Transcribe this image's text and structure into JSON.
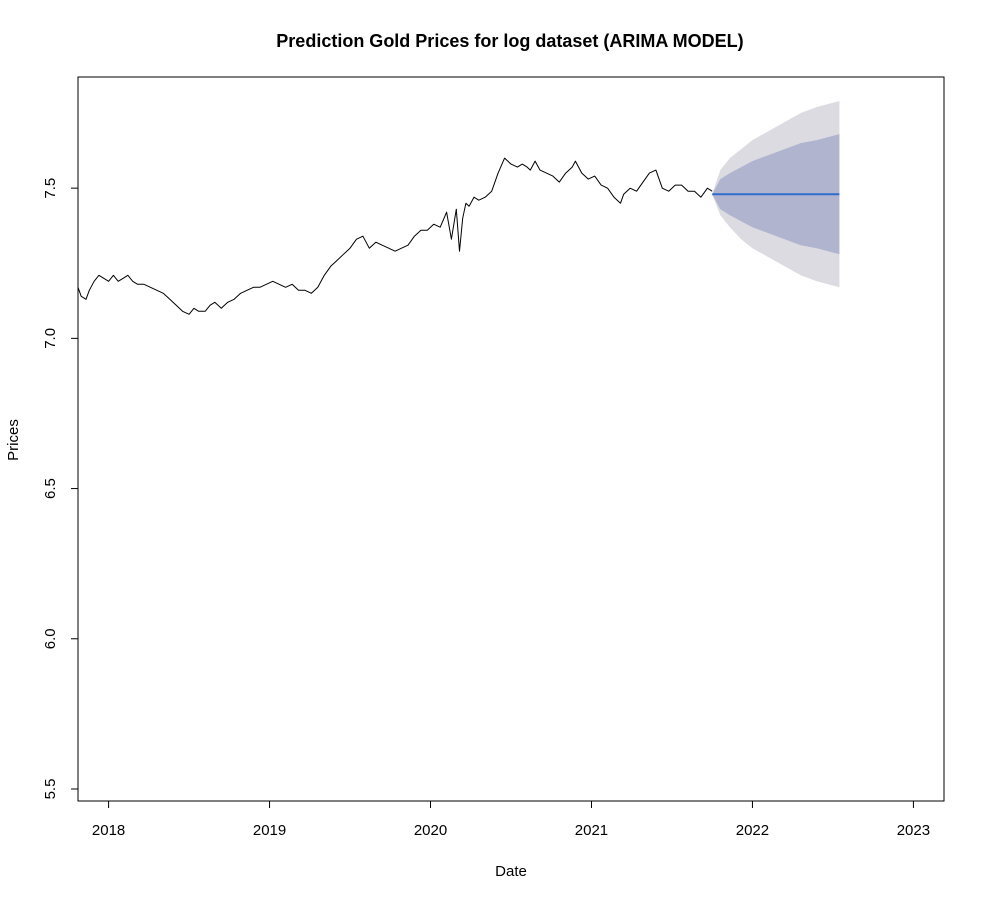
{
  "chart_data": {
    "type": "line",
    "title": "Prediction Gold Prices for log dataset (ARIMA MODEL)",
    "xlabel": "Date",
    "ylabel": "Prices",
    "xlim": [
      2017.81,
      2023.19
    ],
    "ylim": [
      5.46,
      7.87
    ],
    "x_ticks": [
      2018,
      2019,
      2020,
      2021,
      2022,
      2023
    ],
    "x_tick_labels": [
      "2018",
      "2019",
      "2020",
      "2021",
      "2022",
      "2023"
    ],
    "y_ticks": [
      5.5,
      6.0,
      6.5,
      7.0,
      7.5
    ],
    "y_tick_labels": [
      "5.5",
      "6.0",
      "6.5",
      "7.0",
      "7.5"
    ],
    "grid": false,
    "colors": {
      "history": "#000000",
      "forecast_line": "#2f6ccb",
      "band_95": "#dbdbe1",
      "band_80": "#b0b4cf"
    },
    "series": [
      {
        "role": "history",
        "x": [
          2017.81,
          2017.83,
          2017.86,
          2017.88,
          2017.91,
          2017.94,
          2017.97,
          2018.0,
          2018.03,
          2018.06,
          2018.09,
          2018.12,
          2018.15,
          2018.18,
          2018.22,
          2018.26,
          2018.3,
          2018.34,
          2018.38,
          2018.42,
          2018.46,
          2018.5,
          2018.53,
          2018.56,
          2018.6,
          2018.63,
          2018.66,
          2018.7,
          2018.74,
          2018.78,
          2018.82,
          2018.86,
          2018.9,
          2018.94,
          2018.98,
          2019.02,
          2019.06,
          2019.1,
          2019.14,
          2019.18,
          2019.22,
          2019.26,
          2019.3,
          2019.34,
          2019.38,
          2019.42,
          2019.46,
          2019.5,
          2019.54,
          2019.58,
          2019.62,
          2019.66,
          2019.7,
          2019.74,
          2019.78,
          2019.82,
          2019.86,
          2019.9,
          2019.94,
          2019.98,
          2020.02,
          2020.06,
          2020.1,
          2020.13,
          2020.16,
          2020.18,
          2020.2,
          2020.22,
          2020.24,
          2020.27,
          2020.3,
          2020.34,
          2020.38,
          2020.42,
          2020.46,
          2020.5,
          2020.54,
          2020.57,
          2020.6,
          2020.62,
          2020.65,
          2020.68,
          2020.72,
          2020.76,
          2020.8,
          2020.84,
          2020.88,
          2020.9,
          2020.94,
          2020.98,
          2021.02,
          2021.06,
          2021.1,
          2021.14,
          2021.18,
          2021.2,
          2021.24,
          2021.28,
          2021.32,
          2021.36,
          2021.4,
          2021.44,
          2021.48,
          2021.52,
          2021.56,
          2021.6,
          2021.64,
          2021.68,
          2021.72,
          2021.75
        ],
        "y": [
          7.17,
          7.14,
          7.13,
          7.16,
          7.19,
          7.21,
          7.2,
          7.19,
          7.21,
          7.19,
          7.2,
          7.21,
          7.19,
          7.18,
          7.18,
          7.17,
          7.16,
          7.15,
          7.13,
          7.11,
          7.09,
          7.08,
          7.1,
          7.09,
          7.09,
          7.11,
          7.12,
          7.1,
          7.12,
          7.13,
          7.15,
          7.16,
          7.17,
          7.17,
          7.18,
          7.19,
          7.18,
          7.17,
          7.18,
          7.16,
          7.16,
          7.15,
          7.17,
          7.21,
          7.24,
          7.26,
          7.28,
          7.3,
          7.33,
          7.34,
          7.3,
          7.32,
          7.31,
          7.3,
          7.29,
          7.3,
          7.31,
          7.34,
          7.36,
          7.36,
          7.38,
          7.37,
          7.42,
          7.33,
          7.43,
          7.29,
          7.4,
          7.45,
          7.44,
          7.47,
          7.46,
          7.47,
          7.49,
          7.55,
          7.6,
          7.58,
          7.57,
          7.58,
          7.57,
          7.56,
          7.59,
          7.56,
          7.55,
          7.54,
          7.52,
          7.55,
          7.57,
          7.59,
          7.55,
          7.53,
          7.54,
          7.51,
          7.5,
          7.47,
          7.45,
          7.48,
          7.5,
          7.49,
          7.52,
          7.55,
          7.56,
          7.5,
          7.49,
          7.51,
          7.51,
          7.49,
          7.49,
          7.47,
          7.5,
          7.49
        ]
      }
    ],
    "forecast": {
      "x": [
        2021.75,
        2021.8,
        2021.86,
        2021.93,
        2022.0,
        2022.1,
        2022.2,
        2022.3,
        2022.4,
        2022.54
      ],
      "mean": [
        7.48,
        7.48,
        7.48,
        7.48,
        7.48,
        7.48,
        7.48,
        7.48,
        7.48,
        7.48
      ],
      "lo80": [
        7.48,
        7.43,
        7.41,
        7.39,
        7.37,
        7.35,
        7.33,
        7.31,
        7.3,
        7.28
      ],
      "hi80": [
        7.48,
        7.53,
        7.55,
        7.57,
        7.59,
        7.61,
        7.63,
        7.65,
        7.66,
        7.68
      ],
      "lo95": [
        7.48,
        7.41,
        7.37,
        7.33,
        7.3,
        7.27,
        7.24,
        7.21,
        7.19,
        7.17
      ],
      "hi95": [
        7.48,
        7.56,
        7.6,
        7.63,
        7.66,
        7.69,
        7.72,
        7.75,
        7.77,
        7.79
      ]
    }
  }
}
